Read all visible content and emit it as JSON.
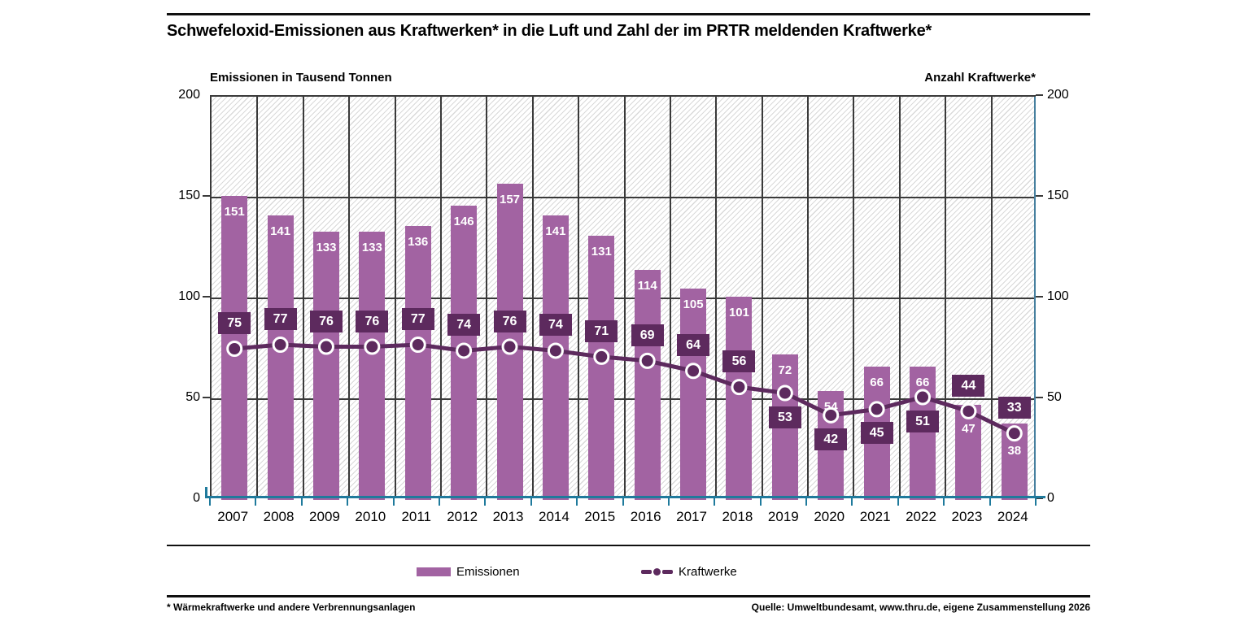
{
  "title": "Schwefeloxid-Emissionen aus Kraftwerken* in die Luft und Zahl der im PRTR meldenden Kraftwerke*",
  "chart_data": {
    "type": "bar+line",
    "categories": [
      "2007",
      "2008",
      "2009",
      "2010",
      "2011",
      "2012",
      "2013",
      "2014",
      "2015",
      "2016",
      "2017",
      "2018",
      "2019",
      "2020",
      "2021",
      "2022",
      "2023",
      "2024"
    ],
    "series": [
      {
        "name": "Emissionen",
        "type": "bar",
        "axis": "left",
        "color": "#a263a2",
        "values": [
          151,
          141,
          133,
          133,
          136,
          146,
          157,
          141,
          131,
          114,
          105,
          101,
          72,
          54,
          66,
          66,
          47,
          38
        ]
      },
      {
        "name": "Kraftwerke",
        "type": "line",
        "axis": "right",
        "color": "#5d2a5e",
        "values": [
          75,
          77,
          76,
          76,
          77,
          74,
          76,
          74,
          71,
          69,
          64,
          56,
          53,
          42,
          45,
          51,
          44,
          33
        ]
      }
    ],
    "left_axis_label": "Emissionen in Tausend Tonnen",
    "right_axis_label": "Anzahl Kraftwerke*",
    "ylim": [
      0,
      200
    ],
    "yticks": [
      0,
      50,
      100,
      150,
      200
    ],
    "grid": true,
    "legend_position": "bottom"
  },
  "legend": {
    "items": [
      {
        "label": "Emissionen",
        "type": "bar"
      },
      {
        "label": "Kraftwerke",
        "type": "line"
      }
    ]
  },
  "footer": {
    "note": "* Wärmekraftwerke und andere Verbrennungsanlagen",
    "source": "Quelle: Umweltbundesamt, www.thru.de, eigene Zusammenstellung 2026"
  },
  "colors": {
    "bar": "#a263a2",
    "line": "#5d2a5e",
    "axis": "#1f7a9c",
    "grid": "#3a3a3a"
  }
}
